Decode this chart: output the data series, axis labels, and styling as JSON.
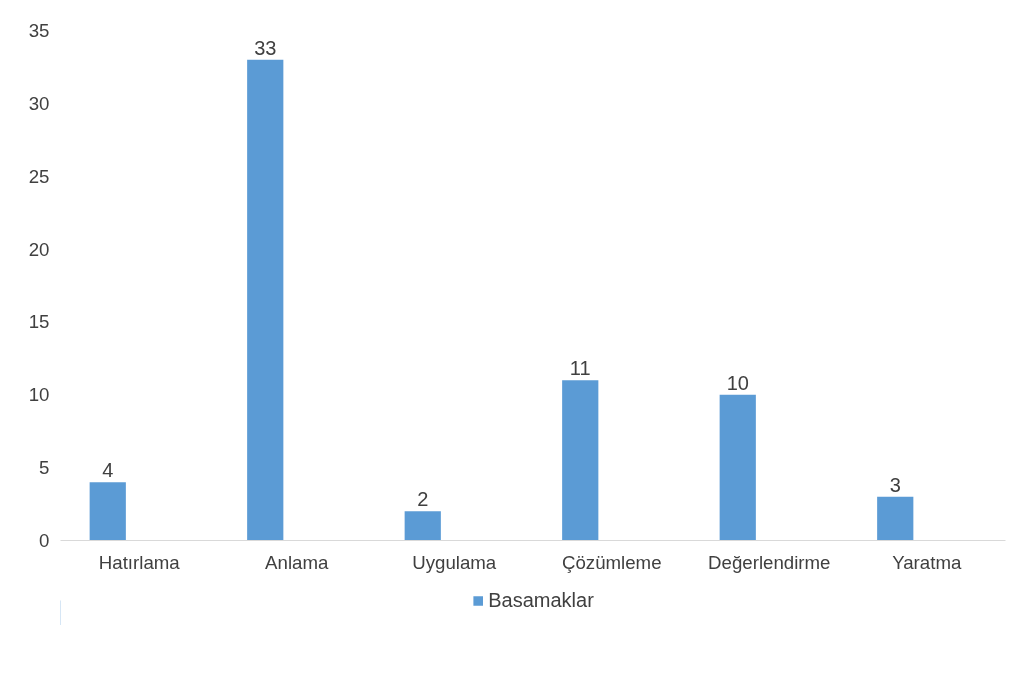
{
  "chart_data": {
    "type": "bar",
    "categories": [
      "Hatırlama",
      "Anlama",
      "Uygulama",
      "Çözümleme",
      "Değerlendirme",
      "Yaratma"
    ],
    "series": [
      {
        "name": "Basamaklar",
        "color": "#5b9bd5",
        "values": [
          4,
          33,
          2,
          11,
          10,
          3
        ]
      }
    ],
    "ylim": [
      0,
      35
    ],
    "yticks": [
      0,
      5,
      10,
      15,
      20,
      25,
      30,
      35
    ],
    "grid": false,
    "legend": "bottom",
    "data_labels": true
  }
}
